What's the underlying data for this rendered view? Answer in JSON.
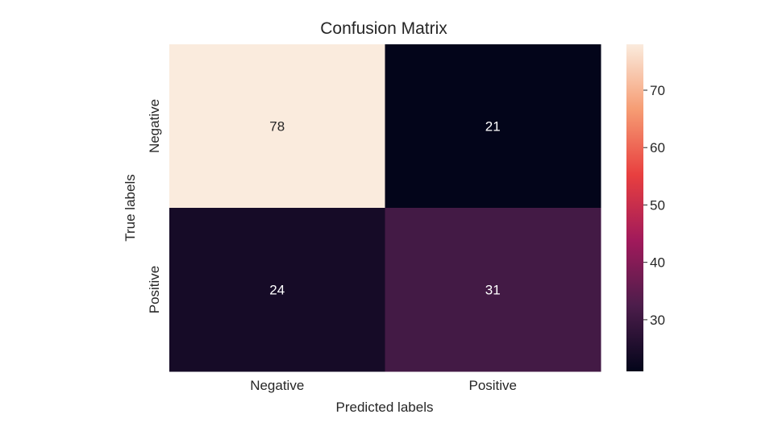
{
  "chart_data": {
    "type": "heatmap",
    "title": "Confusion Matrix",
    "xlabel": "Predicted labels",
    "ylabel": "True labels",
    "x_categories": [
      "Negative",
      "Positive"
    ],
    "y_categories": [
      "Negative",
      "Positive"
    ],
    "values": [
      [
        78,
        21
      ],
      [
        24,
        31
      ]
    ],
    "colorbar": {
      "range": [
        21,
        78
      ],
      "ticks": [
        "30",
        "40",
        "50",
        "60",
        "70"
      ],
      "colormap": "rocket",
      "colors": [
        "#03051a",
        "#4c1d4b",
        "#a11a5b",
        "#e83f3f",
        "#f69c73",
        "#faebdd"
      ]
    },
    "grid": false
  }
}
